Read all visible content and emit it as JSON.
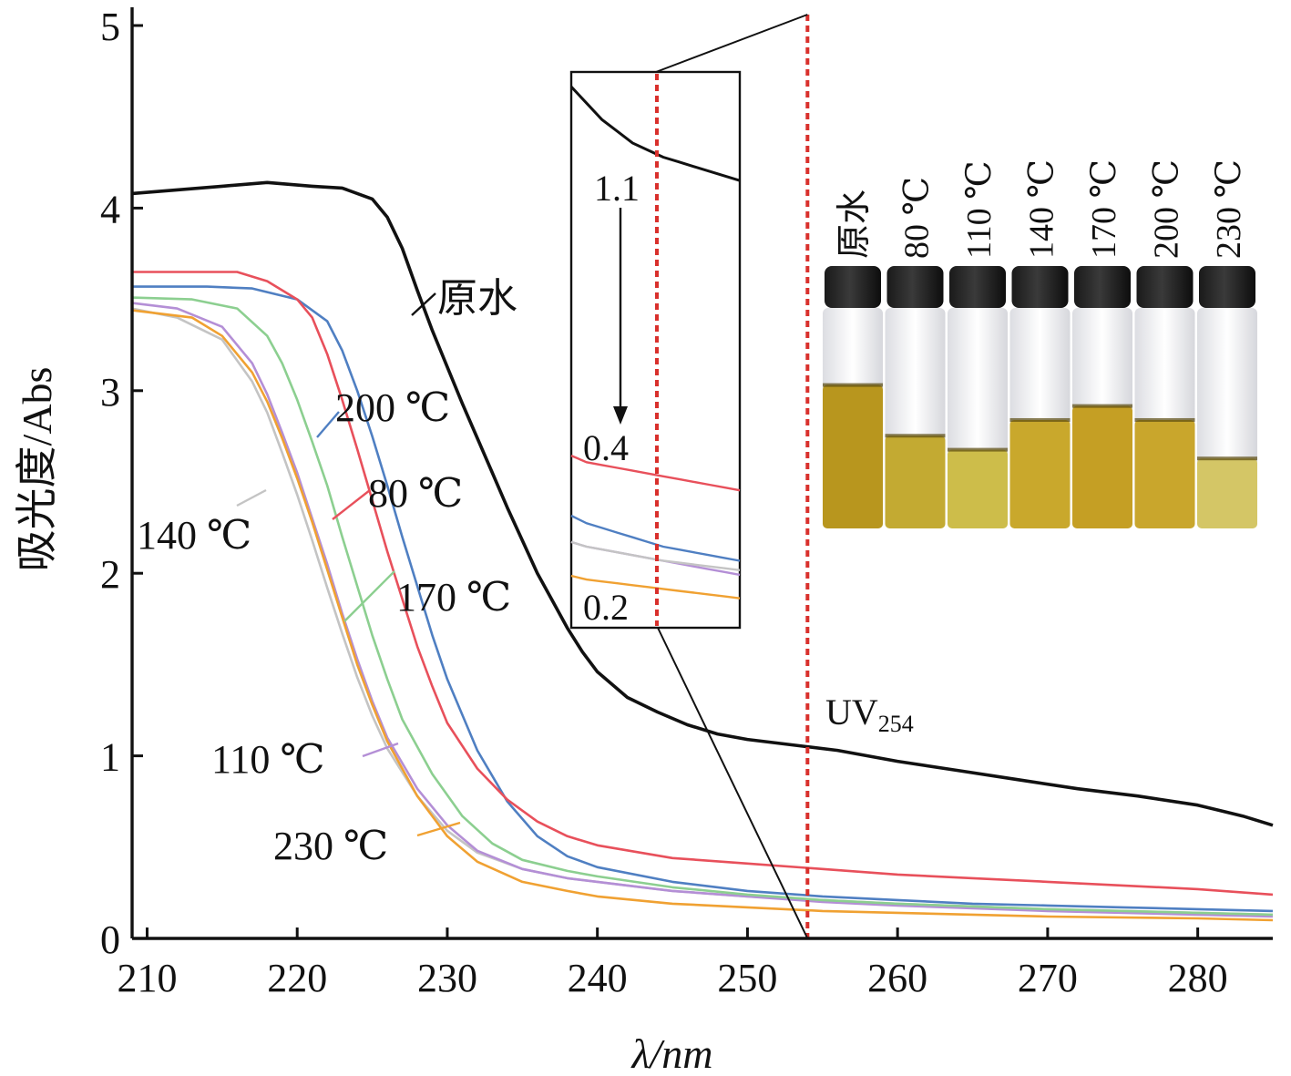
{
  "chart_data": {
    "type": "line",
    "xlabel": "λ/nm",
    "ylabel": "吸光度/Abs",
    "xlim": [
      209,
      285
    ],
    "ylim": [
      0,
      5
    ],
    "xticks": [
      210,
      220,
      230,
      240,
      250,
      260,
      270,
      280
    ],
    "yticks": [
      0,
      1,
      2,
      3,
      4,
      5
    ],
    "grid": false,
    "series": [
      {
        "name": "原水",
        "color": "#111111",
        "points": [
          [
            209,
            4.08
          ],
          [
            212,
            4.1
          ],
          [
            215,
            4.12
          ],
          [
            218,
            4.14
          ],
          [
            221,
            4.12
          ],
          [
            223,
            4.11
          ],
          [
            225,
            4.05
          ],
          [
            226,
            3.95
          ],
          [
            227,
            3.78
          ],
          [
            228,
            3.55
          ],
          [
            229,
            3.33
          ],
          [
            230,
            3.13
          ],
          [
            231,
            2.93
          ],
          [
            232,
            2.74
          ],
          [
            233,
            2.55
          ],
          [
            234,
            2.36
          ],
          [
            235,
            2.18
          ],
          [
            236,
            2.0
          ],
          [
            237,
            1.85
          ],
          [
            238,
            1.7
          ],
          [
            239,
            1.57
          ],
          [
            240,
            1.46
          ],
          [
            242,
            1.32
          ],
          [
            244,
            1.24
          ],
          [
            246,
            1.17
          ],
          [
            248,
            1.12
          ],
          [
            250,
            1.09
          ],
          [
            252,
            1.07
          ],
          [
            254,
            1.05
          ],
          [
            256,
            1.03
          ],
          [
            260,
            0.97
          ],
          [
            264,
            0.92
          ],
          [
            268,
            0.87
          ],
          [
            272,
            0.82
          ],
          [
            276,
            0.78
          ],
          [
            280,
            0.73
          ],
          [
            283,
            0.67
          ],
          [
            285,
            0.62
          ]
        ]
      },
      {
        "name": "80 ℃",
        "color": "#e8505b",
        "points": [
          [
            209,
            3.65
          ],
          [
            213,
            3.65
          ],
          [
            216,
            3.65
          ],
          [
            218,
            3.6
          ],
          [
            220,
            3.5
          ],
          [
            221,
            3.4
          ],
          [
            222,
            3.2
          ],
          [
            223,
            2.95
          ],
          [
            224,
            2.68
          ],
          [
            225,
            2.4
          ],
          [
            226,
            2.12
          ],
          [
            227,
            1.86
          ],
          [
            228,
            1.6
          ],
          [
            229,
            1.38
          ],
          [
            230,
            1.18
          ],
          [
            232,
            0.93
          ],
          [
            234,
            0.76
          ],
          [
            236,
            0.64
          ],
          [
            238,
            0.56
          ],
          [
            240,
            0.51
          ],
          [
            245,
            0.44
          ],
          [
            250,
            0.41
          ],
          [
            255,
            0.38
          ],
          [
            260,
            0.35
          ],
          [
            265,
            0.33
          ],
          [
            270,
            0.31
          ],
          [
            275,
            0.29
          ],
          [
            280,
            0.27
          ],
          [
            285,
            0.24
          ]
        ]
      },
      {
        "name": "200 ℃",
        "color": "#4f7fc2",
        "points": [
          [
            209,
            3.57
          ],
          [
            214,
            3.57
          ],
          [
            217,
            3.56
          ],
          [
            220,
            3.5
          ],
          [
            222,
            3.38
          ],
          [
            223,
            3.22
          ],
          [
            224,
            3.0
          ],
          [
            225,
            2.75
          ],
          [
            226,
            2.48
          ],
          [
            227,
            2.2
          ],
          [
            228,
            1.93
          ],
          [
            229,
            1.66
          ],
          [
            230,
            1.42
          ],
          [
            232,
            1.03
          ],
          [
            234,
            0.75
          ],
          [
            236,
            0.56
          ],
          [
            238,
            0.45
          ],
          [
            240,
            0.39
          ],
          [
            245,
            0.31
          ],
          [
            250,
            0.26
          ],
          [
            255,
            0.23
          ],
          [
            260,
            0.21
          ],
          [
            265,
            0.19
          ],
          [
            270,
            0.18
          ],
          [
            275,
            0.17
          ],
          [
            280,
            0.16
          ],
          [
            285,
            0.15
          ]
        ]
      },
      {
        "name": "170 ℃",
        "color": "#8ccf90",
        "points": [
          [
            209,
            3.51
          ],
          [
            213,
            3.5
          ],
          [
            216,
            3.45
          ],
          [
            218,
            3.3
          ],
          [
            219,
            3.15
          ],
          [
            220,
            2.95
          ],
          [
            221,
            2.72
          ],
          [
            222,
            2.48
          ],
          [
            223,
            2.2
          ],
          [
            224,
            1.93
          ],
          [
            225,
            1.66
          ],
          [
            226,
            1.42
          ],
          [
            227,
            1.2
          ],
          [
            229,
            0.9
          ],
          [
            231,
            0.67
          ],
          [
            233,
            0.52
          ],
          [
            235,
            0.43
          ],
          [
            238,
            0.37
          ],
          [
            240,
            0.34
          ],
          [
            245,
            0.28
          ],
          [
            250,
            0.24
          ],
          [
            255,
            0.21
          ],
          [
            260,
            0.19
          ],
          [
            270,
            0.16
          ],
          [
            280,
            0.14
          ],
          [
            285,
            0.13
          ]
        ]
      },
      {
        "name": "110 ℃",
        "color": "#b48fd6",
        "points": [
          [
            209,
            3.48
          ],
          [
            212,
            3.45
          ],
          [
            215,
            3.35
          ],
          [
            217,
            3.15
          ],
          [
            218,
            2.98
          ],
          [
            219,
            2.77
          ],
          [
            220,
            2.55
          ],
          [
            221,
            2.3
          ],
          [
            222,
            2.05
          ],
          [
            223,
            1.78
          ],
          [
            224,
            1.53
          ],
          [
            225,
            1.3
          ],
          [
            226,
            1.1
          ],
          [
            228,
            0.82
          ],
          [
            230,
            0.62
          ],
          [
            232,
            0.48
          ],
          [
            235,
            0.38
          ],
          [
            238,
            0.33
          ],
          [
            240,
            0.31
          ],
          [
            245,
            0.26
          ],
          [
            250,
            0.23
          ],
          [
            255,
            0.2
          ],
          [
            260,
            0.18
          ],
          [
            270,
            0.15
          ],
          [
            280,
            0.13
          ],
          [
            285,
            0.12
          ]
        ]
      },
      {
        "name": "140 ℃",
        "color": "#c4c4c4",
        "points": [
          [
            209,
            3.45
          ],
          [
            212,
            3.4
          ],
          [
            215,
            3.28
          ],
          [
            217,
            3.05
          ],
          [
            218,
            2.88
          ],
          [
            219,
            2.66
          ],
          [
            220,
            2.43
          ],
          [
            221,
            2.18
          ],
          [
            222,
            1.92
          ],
          [
            223,
            1.67
          ],
          [
            224,
            1.43
          ],
          [
            225,
            1.22
          ],
          [
            226,
            1.04
          ],
          [
            228,
            0.78
          ],
          [
            230,
            0.59
          ],
          [
            232,
            0.47
          ],
          [
            235,
            0.38
          ],
          [
            238,
            0.33
          ],
          [
            240,
            0.31
          ],
          [
            245,
            0.26
          ],
          [
            250,
            0.23
          ],
          [
            255,
            0.21
          ],
          [
            260,
            0.19
          ],
          [
            270,
            0.16
          ],
          [
            280,
            0.14
          ],
          [
            285,
            0.13
          ]
        ]
      },
      {
        "name": "230 ℃",
        "color": "#f0a132",
        "points": [
          [
            209,
            3.44
          ],
          [
            213,
            3.4
          ],
          [
            215,
            3.3
          ],
          [
            217,
            3.1
          ],
          [
            218,
            2.94
          ],
          [
            219,
            2.74
          ],
          [
            220,
            2.52
          ],
          [
            221,
            2.28
          ],
          [
            222,
            2.02
          ],
          [
            223,
            1.76
          ],
          [
            224,
            1.5
          ],
          [
            225,
            1.28
          ],
          [
            226,
            1.08
          ],
          [
            228,
            0.78
          ],
          [
            230,
            0.56
          ],
          [
            232,
            0.42
          ],
          [
            235,
            0.31
          ],
          [
            238,
            0.26
          ],
          [
            240,
            0.23
          ],
          [
            245,
            0.19
          ],
          [
            250,
            0.17
          ],
          [
            255,
            0.15
          ],
          [
            260,
            0.14
          ],
          [
            270,
            0.12
          ],
          [
            280,
            0.11
          ],
          [
            285,
            0.1
          ]
        ]
      }
    ],
    "series_labels": [
      {
        "text": "原水",
        "series": 0
      },
      {
        "text": "200 ℃",
        "series": 2
      },
      {
        "text": "80 ℃",
        "series": 1
      },
      {
        "text": "140 ℃",
        "series": 5
      },
      {
        "text": "170 ℃",
        "series": 3
      },
      {
        "text": "110 ℃",
        "series": 4
      },
      {
        "text": "230 ℃",
        "series": 6
      }
    ],
    "uv_marker": {
      "x": 254,
      "label_main": "UV",
      "label_sub": "254",
      "color": "#d9302c"
    },
    "inset": {
      "labels": [
        "1.1",
        "0.4",
        "0.2"
      ],
      "dashed_line_color": "#d9302c",
      "lines": [
        {
          "series": 0,
          "color": "#111111"
        },
        {
          "series": 1,
          "color": "#e8505b"
        },
        {
          "series": 2,
          "color": "#4f7fc2"
        },
        {
          "series": 4,
          "color": "#b48fd6"
        },
        {
          "series": 5,
          "color": "#c4c4c4"
        },
        {
          "series": 6,
          "color": "#f0a132"
        }
      ]
    },
    "vials": {
      "labels": [
        "原水",
        "80 ℃",
        "110 ℃",
        "140 ℃",
        "170 ℃",
        "200 ℃",
        "230 ℃"
      ],
      "liquid_level": [
        0.82,
        0.53,
        0.45,
        0.62,
        0.7,
        0.62,
        0.4
      ],
      "liquid_colors": [
        "#b8961e",
        "#c3aa32",
        "#cdbd4a",
        "#c9a82c",
        "#c59f24",
        "#c9a62c",
        "#d4c666"
      ]
    }
  }
}
